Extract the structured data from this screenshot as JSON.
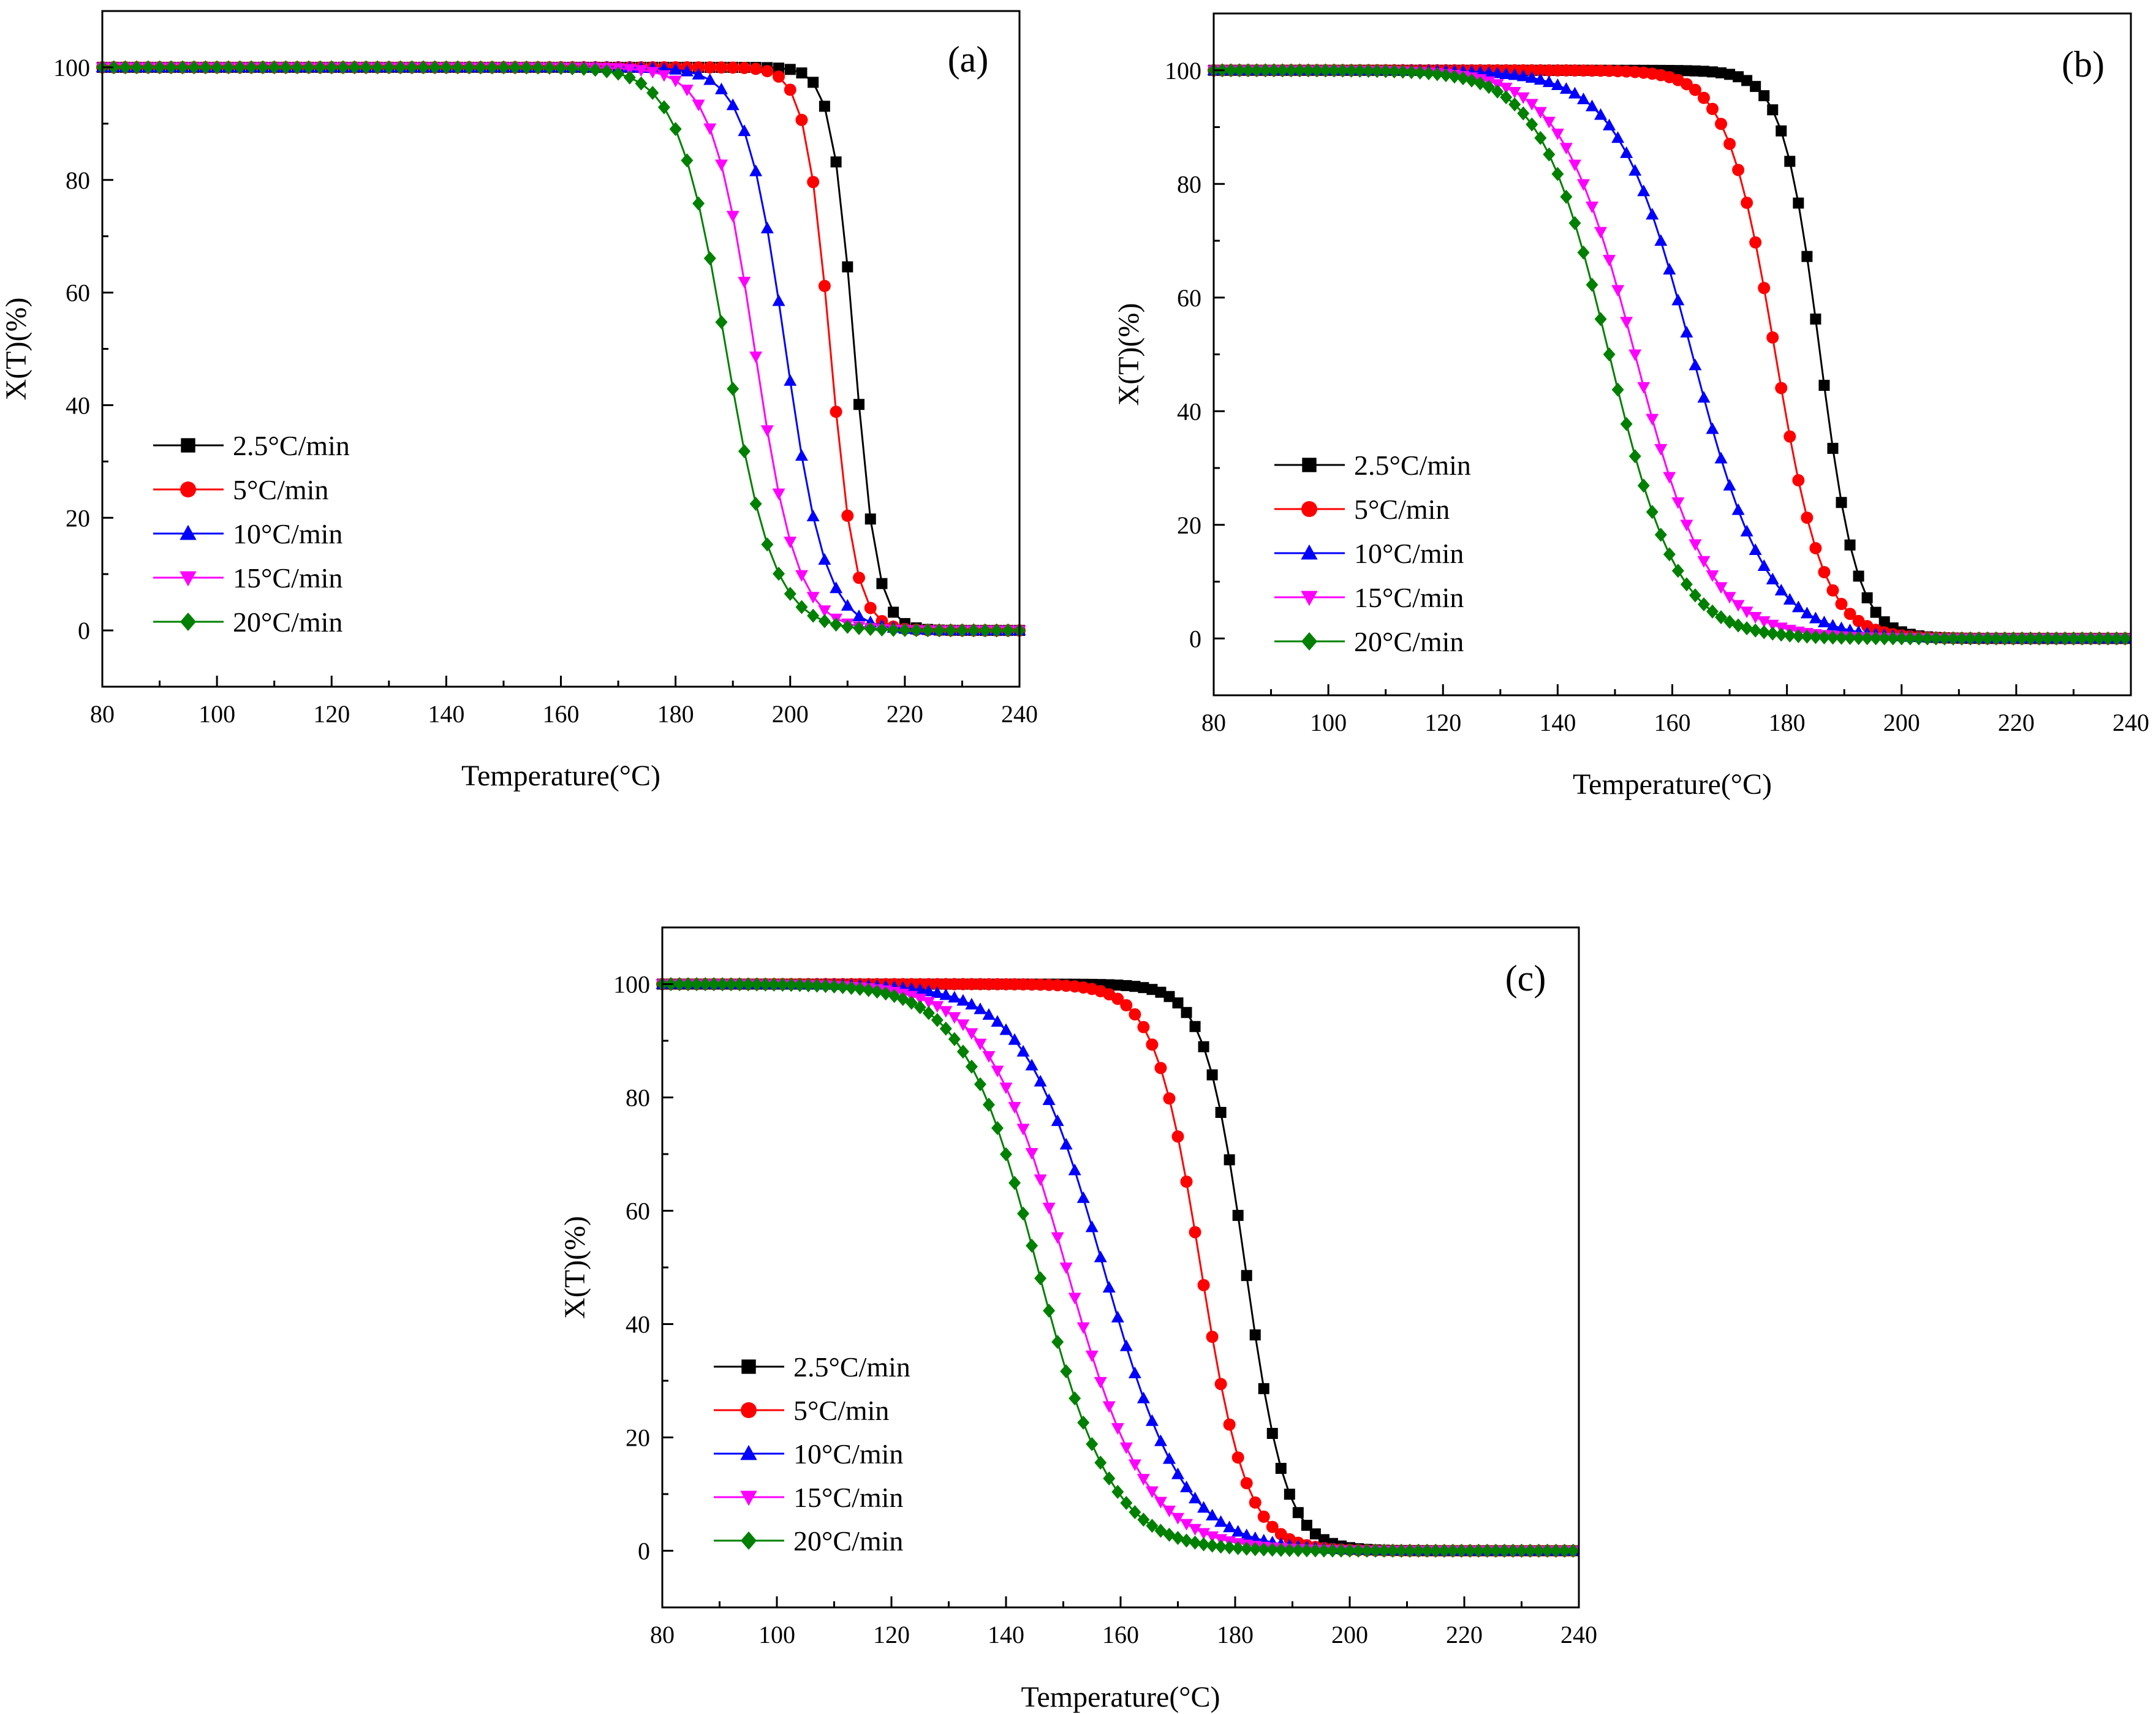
{
  "figure": {
    "background": "#ffffff"
  },
  "chart_data": [
    {
      "type": "line",
      "panel_label": "(a)",
      "xlabel": "Temperature(°C)",
      "ylabel": "X(T)(%)",
      "xlim": [
        80,
        240
      ],
      "ylim": [
        -10,
        110
      ],
      "xticks": [
        80,
        100,
        120,
        140,
        160,
        180,
        200,
        220,
        240
      ],
      "yticks": [
        0,
        20,
        40,
        60,
        80,
        100
      ],
      "grid": false,
      "legend_position": "left",
      "x_step": 2,
      "series": [
        {
          "name": "2.5°C/min",
          "color": "#000000",
          "marker": "square",
          "t50": 211.2,
          "width": 2.0
        },
        {
          "name": "5°C/min",
          "color": "#ff0000",
          "marker": "circle",
          "t50": 207.0,
          "width": 2.2
        },
        {
          "name": "10°C/min",
          "color": "#0000ff",
          "marker": "triangle-up",
          "t50": 199.2,
          "width": 3.5
        },
        {
          "name": "15°C/min",
          "color": "#ff00ff",
          "marker": "triangle-down",
          "t50": 193.8,
          "width": 3.7
        },
        {
          "name": "20°C/min",
          "color": "#008000",
          "marker": "diamond",
          "t50": 188.8,
          "width": 4.2
        }
      ]
    },
    {
      "type": "line",
      "panel_label": "(b)",
      "xlabel": "Temperature(°C)",
      "ylabel": "X(T)(%)",
      "xlim": [
        80,
        240
      ],
      "ylim": [
        -10,
        110
      ],
      "xticks": [
        80,
        100,
        120,
        140,
        160,
        180,
        200,
        220,
        240
      ],
      "yticks": [
        0,
        20,
        40,
        60,
        80,
        100
      ],
      "grid": false,
      "legend_position": "left",
      "x_step": 1.5,
      "series": [
        {
          "name": "2.5°C/min",
          "color": "#000000",
          "marker": "square",
          "t50": 185.8,
          "width": 3.2
        },
        {
          "name": "5°C/min",
          "color": "#ff0000",
          "marker": "circle",
          "t50": 178.0,
          "width": 4.2
        },
        {
          "name": "10°C/min",
          "color": "#0000ff",
          "marker": "triangle-up",
          "t50": 163.5,
          "width": 6.5
        },
        {
          "name": "15°C/min",
          "color": "#ff00ff",
          "marker": "triangle-down",
          "t50": 153.5,
          "width": 6.5
        },
        {
          "name": "20°C/min",
          "color": "#008000",
          "marker": "diamond",
          "t50": 149.0,
          "width": 6.0
        }
      ]
    },
    {
      "type": "line",
      "panel_label": "(c)",
      "xlabel": "Temperature(°C)",
      "ylabel": "X(T)(%)",
      "xlim": [
        80,
        240
      ],
      "ylim": [
        -10,
        110
      ],
      "xticks": [
        80,
        100,
        120,
        140,
        160,
        180,
        200,
        220,
        240
      ],
      "yticks": [
        0,
        20,
        40,
        60,
        80,
        100
      ],
      "grid": false,
      "legend_position": "left",
      "x_step": 1.5,
      "series": [
        {
          "name": "2.5°C/min",
          "color": "#000000",
          "marker": "square",
          "t50": 181.8,
          "width": 3.5
        },
        {
          "name": "5°C/min",
          "color": "#ff0000",
          "marker": "circle",
          "t50": 174.0,
          "width": 4.0
        },
        {
          "name": "10°C/min",
          "color": "#0000ff",
          "marker": "triangle-up",
          "t50": 157.0,
          "width": 7.0
        },
        {
          "name": "15°C/min",
          "color": "#ff00ff",
          "marker": "triangle-down",
          "t50": 150.5,
          "width": 7.0
        },
        {
          "name": "20°C/min",
          "color": "#008000",
          "marker": "diamond",
          "t50": 145.5,
          "width": 6.5
        }
      ]
    }
  ]
}
